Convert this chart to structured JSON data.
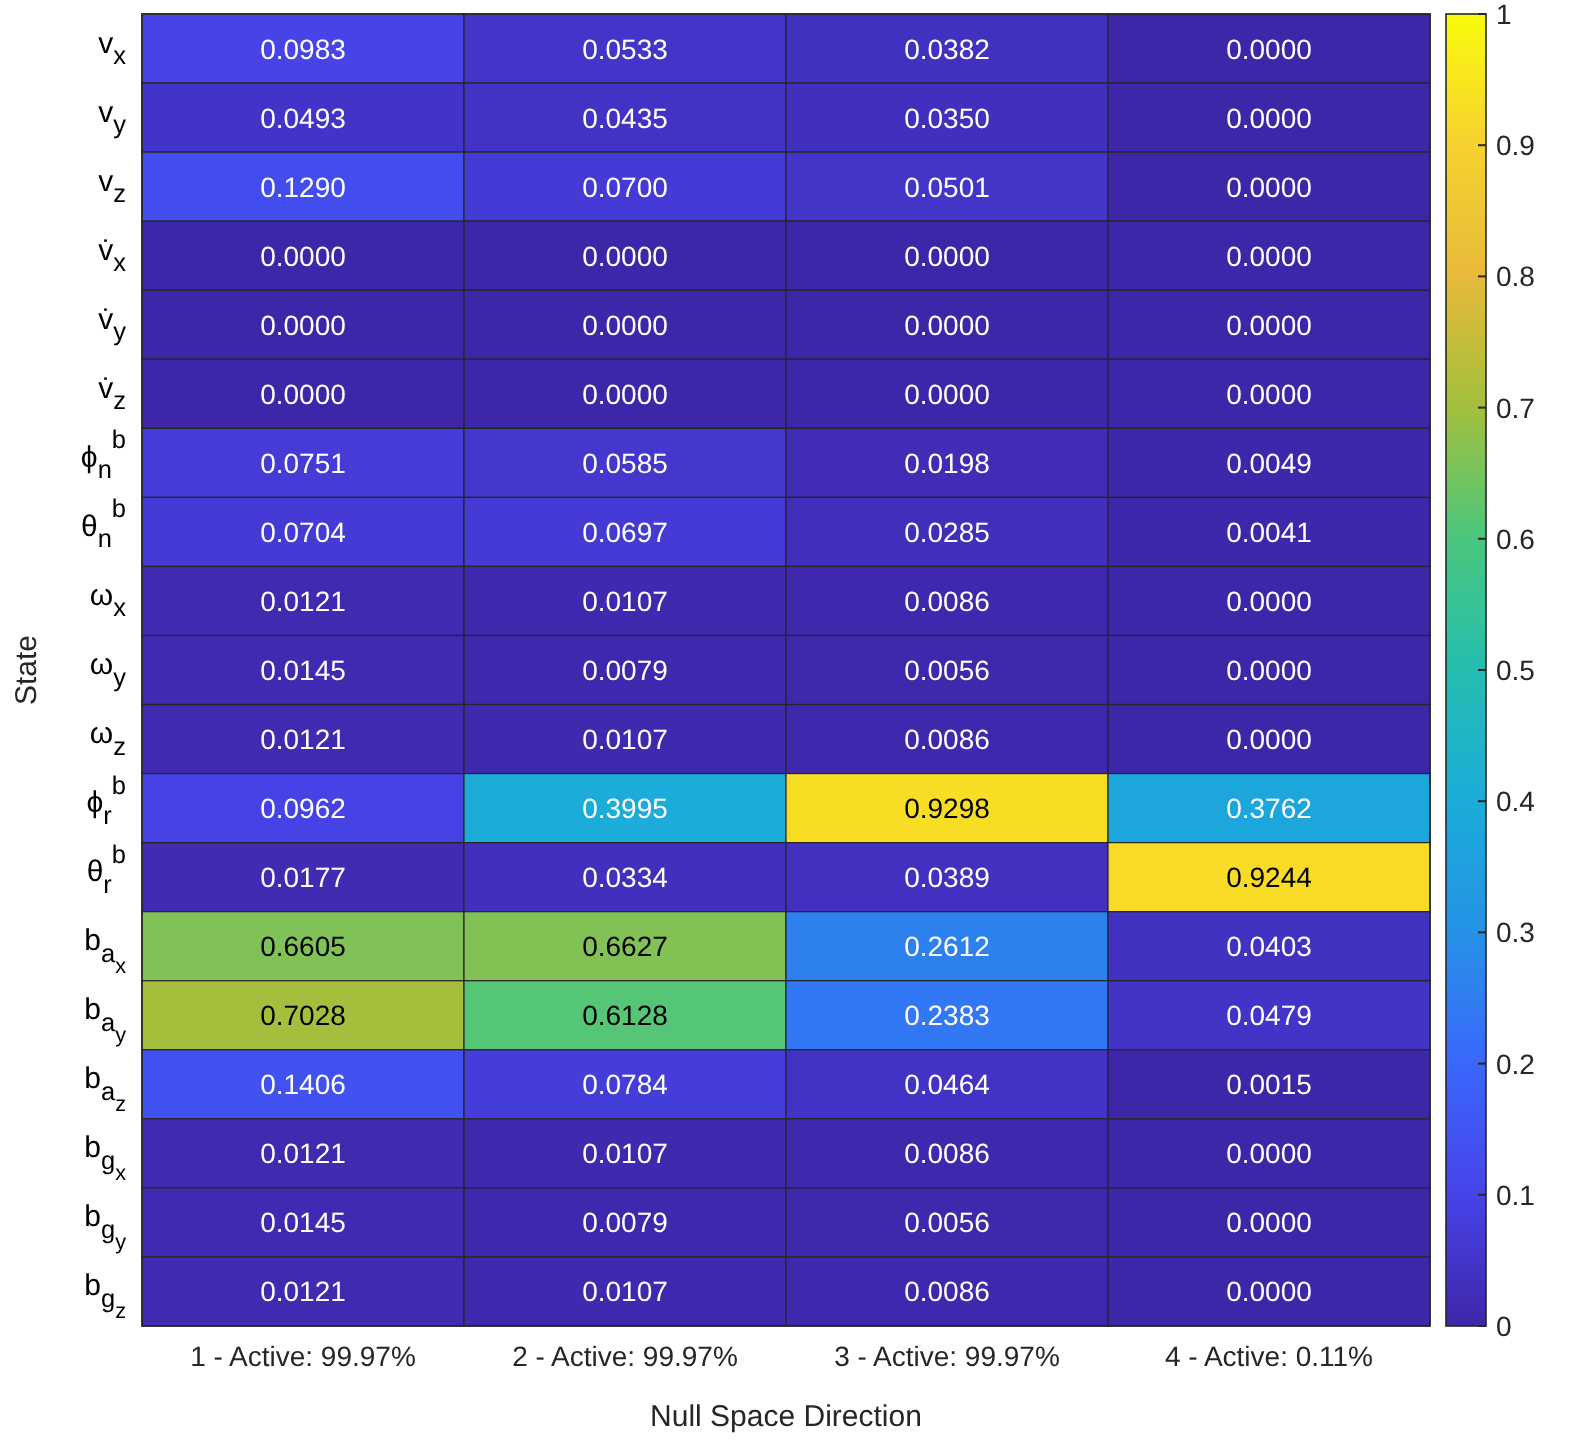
{
  "chart_data": {
    "type": "heatmap",
    "xlabel": "Null Space Direction",
    "ylabel": "State",
    "categories": [
      "1 - Active: 99.97%",
      "2 - Active: 99.97%",
      "3 - Active: 99.97%",
      "4 - Active: 0.11%"
    ],
    "y_categories": [
      "v$_{x}$",
      "v$_{y}$",
      "v$_{z}$",
      "v̇$_{x}$",
      "v̇$_{y}$",
      "v̇$_{z}$",
      "ϕ$_{n}$$^{b}$",
      "θ$_{n}$$^{b}$",
      "ω$_{x}$",
      "ω$_{y}$",
      "ω$_{z}$",
      "ϕ$_{r}$$^{b}$",
      "θ$_{r}$$^{b}$",
      "b$_{a}$$_{x}$",
      "b$_{a}$$_{y}$",
      "b$_{a}$$_{z}$",
      "b$_{g}$$_{x}$",
      "b$_{g}$$_{y}$",
      "b$_{g}$$_{z}$"
    ],
    "cells": [
      [
        0.0983,
        0.0533,
        0.0382,
        0
      ],
      [
        0.0493,
        0.0435,
        0.035,
        0
      ],
      [
        0.129,
        0.07,
        0.0501,
        0
      ],
      [
        0,
        0,
        0,
        0
      ],
      [
        0,
        0,
        0,
        0
      ],
      [
        0,
        0,
        0,
        0
      ],
      [
        0.0751,
        0.0585,
        0.0198,
        0.0049
      ],
      [
        0.0704,
        0.0697,
        0.0285,
        0.0041
      ],
      [
        0.0121,
        0.0107,
        0.0086,
        0
      ],
      [
        0.0145,
        0.0079,
        0.0056,
        0
      ],
      [
        0.0121,
        0.0107,
        0.0086,
        0
      ],
      [
        0.0962,
        0.3995,
        0.9298,
        0.3762
      ],
      [
        0.0177,
        0.0334,
        0.0389,
        0.9244
      ],
      [
        0.6605,
        0.6627,
        0.2612,
        0.0403
      ],
      [
        0.7028,
        0.6128,
        0.2383,
        0.0479
      ],
      [
        0.1406,
        0.0784,
        0.0464,
        0.0015
      ],
      [
        0.0121,
        0.0107,
        0.0086,
        0
      ],
      [
        0.0145,
        0.0079,
        0.0056,
        0
      ],
      [
        0.0121,
        0.0107,
        0.0086,
        0
      ]
    ],
    "cell_labels": [
      [
        "0.0983",
        "0.0533",
        "0.0382",
        "0.0000"
      ],
      [
        "0.0493",
        "0.0435",
        "0.0350",
        "0.0000"
      ],
      [
        "0.1290",
        "0.0700",
        "0.0501",
        "0.0000"
      ],
      [
        "0.0000",
        "0.0000",
        "0.0000",
        "0.0000"
      ],
      [
        "0.0000",
        "0.0000",
        "0.0000",
        "0.0000"
      ],
      [
        "0.0000",
        "0.0000",
        "0.0000",
        "0.0000"
      ],
      [
        "0.0751",
        "0.0585",
        "0.0198",
        "0.0049"
      ],
      [
        "0.0704",
        "0.0697",
        "0.0285",
        "0.0041"
      ],
      [
        "0.0121",
        "0.0107",
        "0.0086",
        "0.0000"
      ],
      [
        "0.0145",
        "0.0079",
        "0.0056",
        "0.0000"
      ],
      [
        "0.0121",
        "0.0107",
        "0.0086",
        "0.0000"
      ],
      [
        "0.0962",
        "0.3995",
        "0.9298",
        "0.3762"
      ],
      [
        "0.0177",
        "0.0334",
        "0.0389",
        "0.9244"
      ],
      [
        "0.6605",
        "0.6627",
        "0.2612",
        "0.0403"
      ],
      [
        "0.7028",
        "0.6128",
        "0.2383",
        "0.0479"
      ],
      [
        "0.1406",
        "0.0784",
        "0.0464",
        "0.0015"
      ],
      [
        "0.0121",
        "0.0107",
        "0.0086",
        "0.0000"
      ],
      [
        "0.0145",
        "0.0079",
        "0.0056",
        "0.0000"
      ],
      [
        "0.0121",
        "0.0107",
        "0.0086",
        "0.0000"
      ]
    ],
    "clim": [
      0,
      1
    ],
    "cticks": [
      0,
      0.1,
      0.2,
      0.3,
      0.4,
      0.5,
      0.6,
      0.7,
      0.8,
      0.9,
      1
    ]
  }
}
